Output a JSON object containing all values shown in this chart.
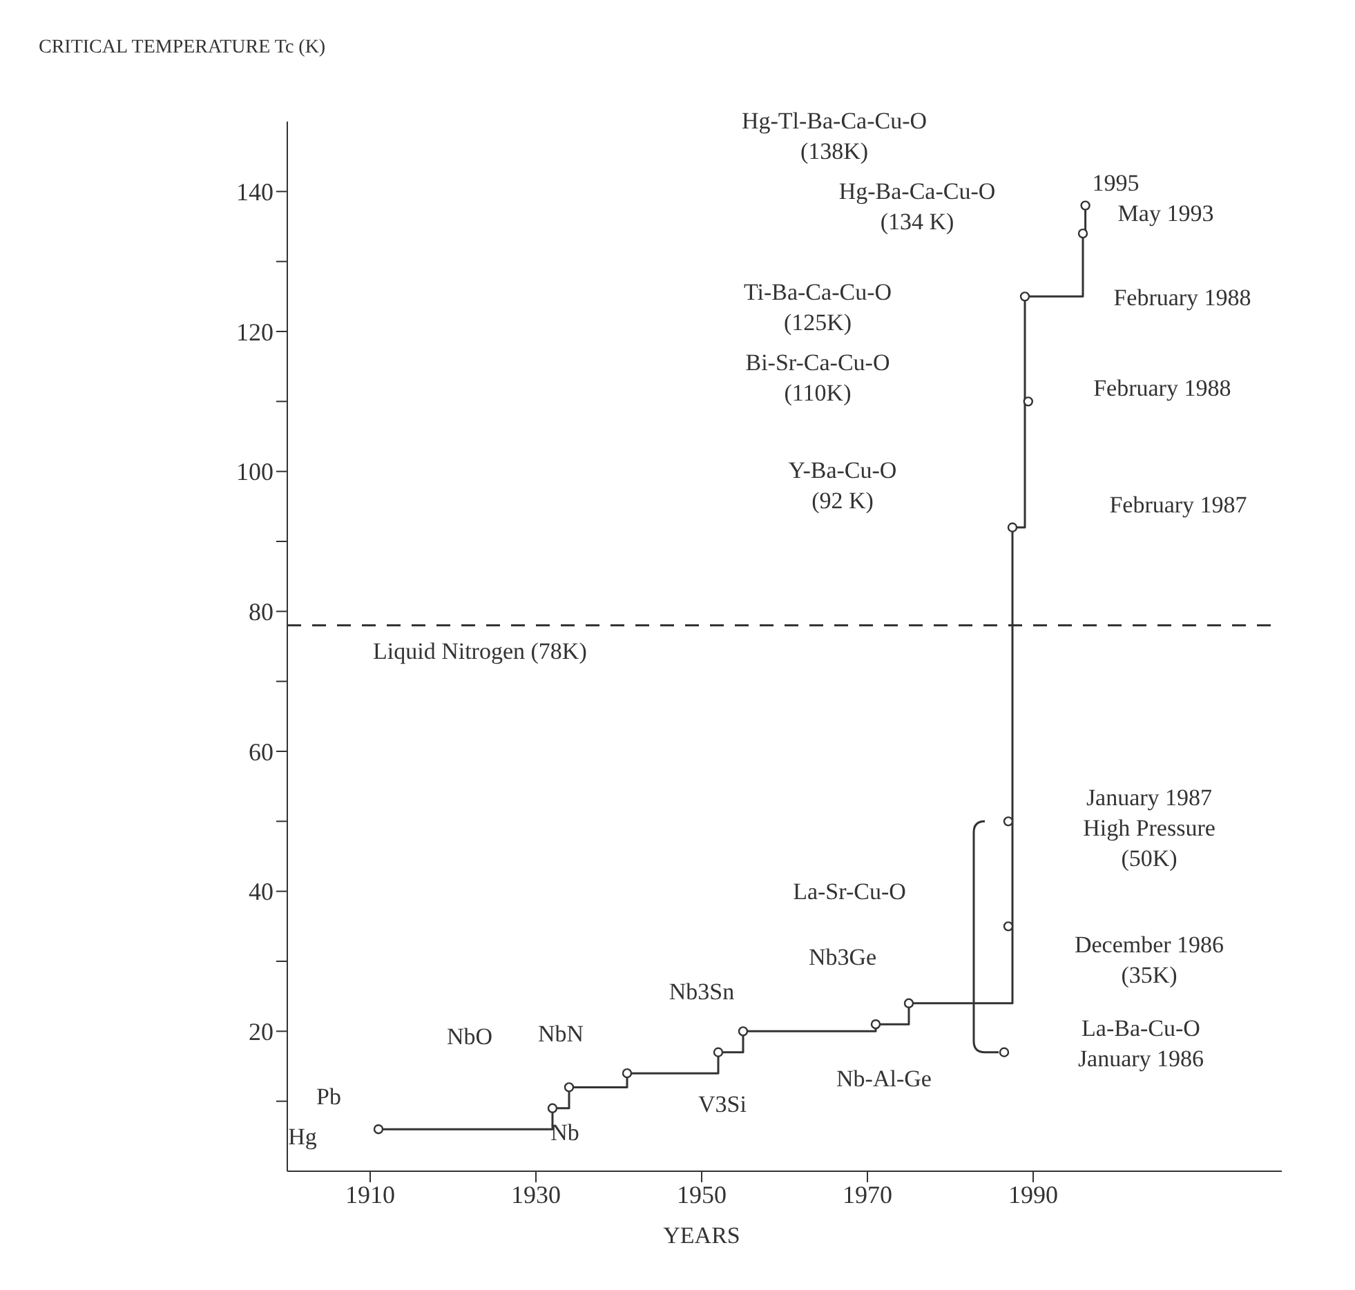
{
  "chart_data": {
    "type": "step",
    "xlabel": "YEARS",
    "ylabel": "CRITICAL TEMPERATURE Tc (K)",
    "xlim": [
      1900,
      2020
    ],
    "xticks": [
      1910,
      1930,
      1950,
      1970,
      1990
    ],
    "ylim": [
      0,
      150
    ],
    "yticks": [
      {
        "value": 10,
        "label": null
      },
      20,
      {
        "value": 30,
        "label": null
      },
      40,
      {
        "value": 50,
        "label": null
      },
      60,
      {
        "value": 70,
        "label": null
      },
      80,
      {
        "value": 90,
        "label": null
      },
      100,
      {
        "value": 110,
        "label": null
      },
      120,
      {
        "value": 130,
        "label": null
      },
      140
    ],
    "marker": "circle",
    "series": [
      {
        "type": "step",
        "color": "#333333",
        "x": [
          1911,
          1932,
          1934,
          1941,
          1952,
          1955,
          1971,
          1975,
          1987.5,
          1989,
          1996,
          1996.3
        ],
        "values": [
          6,
          9,
          12,
          14,
          17,
          20,
          21,
          24,
          92,
          125,
          134,
          138
        ]
      },
      {
        "type": "scatter",
        "color": "#333333",
        "x": [
          1986.5,
          1987,
          1987
        ],
        "values": [
          17,
          35,
          50
        ]
      },
      {
        "type": "scatter",
        "color": "#333333",
        "x": [
          1989.4
        ],
        "values": [
          110
        ]
      }
    ],
    "ref_lines": [
      {
        "axis": "y",
        "value": 78,
        "label": "Liquid Nitrogen (78K)",
        "line_style": "dashed",
        "color": "#333333"
      }
    ],
    "annotations": [
      {
        "text": "Hg",
        "x": 1911,
        "y": 6
      },
      {
        "text": "Pb",
        "x": 1911,
        "y": 6
      },
      "NbO",
      {
        "text": "Nb",
        "x": 1932,
        "y": 9
      },
      {
        "text": "NbN",
        "x": 1941,
        "y": 14
      },
      {
        "text": "V3Si",
        "x": 1952,
        "y": 17
      },
      {
        "text": "Nb3Sn",
        "x": 1955,
        "y": 20
      },
      {
        "text": "Nb3Ge",
        "x": 1975,
        "y": 24
      },
      {
        "text": "Nb-Al-Ge",
        "x": 1971,
        "y": 21
      },
      "La-Sr-Cu-O",
      "Y-Ba-Cu-O\n(92 K)",
      "Bi-Sr-Ca-Cu-O\n(110K)",
      "Ti-Ba-Ca-Cu-O\n(125K)",
      "Hg-Ba-Ca-Cu-O\n(134 K)",
      "Hg-Tl-Ba-Ca-Cu-O\n(138K)",
      {
        "text": "1995",
        "x": 1996.3,
        "y": 138
      },
      {
        "text": "May 1993",
        "x": 1996,
        "y": 134
      },
      "February 1988",
      {
        "text": "February 1988",
        "x": 1989.4,
        "y": 110
      },
      "February 1987",
      "January 1987\nHigh Pressure\n(50K)",
      {
        "text": "December 1986\n(35K)",
        "x": 1987,
        "y": 35
      },
      "La-Ba-Cu-O\nJanuary 1986"
    ]
  }
}
